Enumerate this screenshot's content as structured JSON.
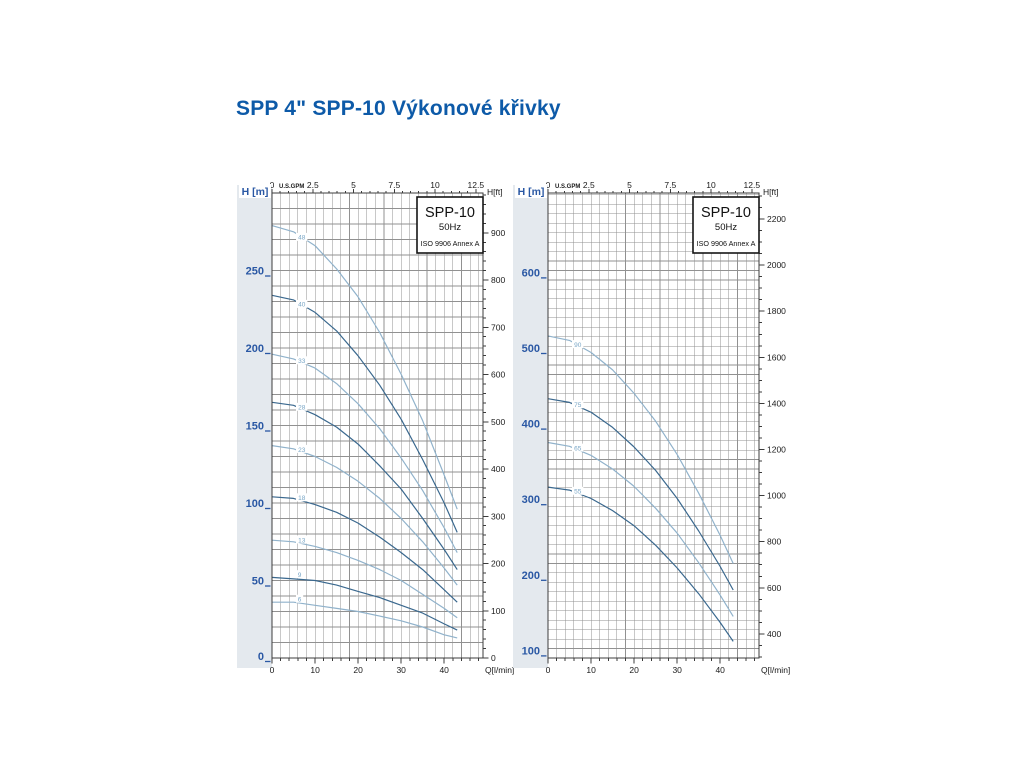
{
  "page": {
    "title": "SPP 4\" SPP-10 Výkonové křivky"
  },
  "colors": {
    "title_blue": "#0d5aa8",
    "axis_value_blue": "#2a58a4",
    "curve_dark": "#3a688e",
    "curve_light": "#90b2cb",
    "curve_label_blue": "#79a6c6",
    "grid_gray": "#919191",
    "plot_border": "#3c3c3c",
    "tick_text": "#1a1a1a",
    "panel_strip": "#e4e9ee"
  },
  "chart_data": [
    {
      "type": "line",
      "title": "SPP-10",
      "box": {
        "model": "SPP-10",
        "frequency": "50Hz",
        "standard": "ISO 9906 Annex A"
      },
      "axes": {
        "left_label": "H [m]",
        "right_label": "H[ft]",
        "bottom_label": "Q[l/min]",
        "top_label": "U.S.GPM",
        "y_m_range": [
          0,
          300
        ],
        "y_m_ticks": [
          0,
          50,
          100,
          150,
          200,
          250
        ],
        "y_ft_labels": [
          0,
          100,
          200,
          300,
          400,
          500,
          600,
          700,
          800,
          900
        ],
        "y_ft_minor_range": [
          0,
          980
        ],
        "y_ft_minor_step": 20,
        "x_lmin_max": 49,
        "x_lmin_ticks": [
          0,
          10,
          20,
          30,
          40
        ],
        "x_lmin_minor_step": 2,
        "x_gpm_ticks": [
          0,
          2.5,
          5,
          7.5,
          10,
          12.5
        ],
        "x_gpm_minor_step": 0.5,
        "grid_m_step": 10
      },
      "series": [
        {
          "stages": "48",
          "shade": "light",
          "points": [
            [
              0,
              279
            ],
            [
              5,
              275
            ],
            [
              10,
              266
            ],
            [
              15,
              251
            ],
            [
              20,
              233
            ],
            [
              25,
              210
            ],
            [
              30,
              183
            ],
            [
              35,
              153
            ],
            [
              40,
              118
            ],
            [
              43,
              96
            ]
          ]
        },
        {
          "stages": "40",
          "shade": "dark",
          "points": [
            [
              0,
              234
            ],
            [
              5,
              231
            ],
            [
              10,
              223
            ],
            [
              15,
              211
            ],
            [
              20,
              195
            ],
            [
              25,
              176
            ],
            [
              30,
              154
            ],
            [
              35,
              128
            ],
            [
              40,
              100
            ],
            [
              43,
              81
            ]
          ]
        },
        {
          "stages": "33",
          "shade": "light",
          "points": [
            [
              0,
              196
            ],
            [
              5,
              193
            ],
            [
              10,
              187
            ],
            [
              15,
              177
            ],
            [
              20,
              164
            ],
            [
              25,
              148
            ],
            [
              30,
              129
            ],
            [
              35,
              108
            ],
            [
              40,
              84
            ],
            [
              43,
              68
            ]
          ]
        },
        {
          "stages": "28",
          "shade": "dark",
          "points": [
            [
              0,
              165
            ],
            [
              5,
              163
            ],
            [
              10,
              157
            ],
            [
              15,
              149
            ],
            [
              20,
              138
            ],
            [
              25,
              124
            ],
            [
              30,
              109
            ],
            [
              35,
              90
            ],
            [
              40,
              70
            ],
            [
              43,
              57
            ]
          ]
        },
        {
          "stages": "23",
          "shade": "light",
          "points": [
            [
              0,
              137
            ],
            [
              5,
              135
            ],
            [
              10,
              130
            ],
            [
              15,
              123
            ],
            [
              20,
              114
            ],
            [
              25,
              103
            ],
            [
              30,
              90
            ],
            [
              35,
              75
            ],
            [
              40,
              58
            ],
            [
              43,
              47
            ]
          ]
        },
        {
          "stages": "18",
          "shade": "dark",
          "points": [
            [
              0,
              104
            ],
            [
              5,
              103
            ],
            [
              10,
              99
            ],
            [
              15,
              94
            ],
            [
              20,
              87
            ],
            [
              25,
              78
            ],
            [
              30,
              68
            ],
            [
              35,
              57
            ],
            [
              40,
              44
            ],
            [
              43,
              36
            ]
          ]
        },
        {
          "stages": "13",
          "shade": "light",
          "points": [
            [
              0,
              76
            ],
            [
              5,
              75
            ],
            [
              10,
              72
            ],
            [
              15,
              68
            ],
            [
              20,
              63
            ],
            [
              25,
              57
            ],
            [
              30,
              50
            ],
            [
              35,
              41
            ],
            [
              40,
              32
            ],
            [
              43,
              26
            ]
          ]
        },
        {
          "stages": "9",
          "shade": "dark",
          "points": [
            [
              0,
              52
            ],
            [
              5,
              51
            ],
            [
              10,
              50
            ],
            [
              15,
              47
            ],
            [
              20,
              43
            ],
            [
              25,
              39
            ],
            [
              30,
              34
            ],
            [
              35,
              29
            ],
            [
              40,
              22
            ],
            [
              43,
              18
            ]
          ]
        },
        {
          "stages": "6",
          "shade": "light",
          "points": [
            [
              0,
              36
            ],
            [
              5,
              36
            ],
            [
              10,
              34
            ],
            [
              15,
              32
            ],
            [
              20,
              30
            ],
            [
              25,
              27
            ],
            [
              30,
              24
            ],
            [
              35,
              20
            ],
            [
              40,
              15
            ],
            [
              43,
              13
            ]
          ]
        }
      ]
    },
    {
      "type": "line",
      "title": "SPP-10",
      "box": {
        "model": "SPP-10",
        "frequency": "50Hz",
        "standard": "ISO 9906 Annex A"
      },
      "axes": {
        "left_label": "H [m]",
        "right_label": "H[ft]",
        "bottom_label": "Q[l/min]",
        "top_label": "U.S.GPM",
        "y_m_range": [
          90,
          705
        ],
        "y_m_ticks": [
          100,
          200,
          300,
          400,
          500,
          600
        ],
        "y_ft_labels": [
          400,
          600,
          800,
          1000,
          1200,
          1400,
          1600,
          1800,
          2000,
          2200
        ],
        "y_ft_minor_range": [
          300,
          2300
        ],
        "y_ft_minor_step": 50,
        "x_lmin_max": 49,
        "x_lmin_ticks": [
          0,
          10,
          20,
          30,
          40
        ],
        "x_lmin_minor_step": 2,
        "x_gpm_ticks": [
          0,
          2.5,
          5,
          7.5,
          10,
          12.5
        ],
        "x_gpm_minor_step": 0.5,
        "grid_m_step": 12.5
      },
      "series": [
        {
          "stages": "90",
          "shade": "light",
          "points": [
            [
              0,
              516
            ],
            [
              5,
              510
            ],
            [
              10,
              494
            ],
            [
              15,
              471
            ],
            [
              20,
              440
            ],
            [
              25,
              403
            ],
            [
              30,
              359
            ],
            [
              35,
              308
            ],
            [
              40,
              252
            ],
            [
              43,
              215
            ]
          ]
        },
        {
          "stages": "75",
          "shade": "dark",
          "points": [
            [
              0,
              433
            ],
            [
              5,
              428
            ],
            [
              10,
              415
            ],
            [
              15,
              395
            ],
            [
              20,
              369
            ],
            [
              25,
              338
            ],
            [
              30,
              301
            ],
            [
              35,
              258
            ],
            [
              40,
              211
            ],
            [
              43,
              180
            ]
          ]
        },
        {
          "stages": "65",
          "shade": "light",
          "points": [
            [
              0,
              375
            ],
            [
              5,
              370
            ],
            [
              10,
              358
            ],
            [
              15,
              340
            ],
            [
              20,
              317
            ],
            [
              25,
              288
            ],
            [
              30,
              255
            ],
            [
              35,
              216
            ],
            [
              40,
              173
            ],
            [
              43,
              145
            ]
          ]
        },
        {
          "stages": "55",
          "shade": "dark",
          "points": [
            [
              0,
              316
            ],
            [
              5,
              312
            ],
            [
              10,
              301
            ],
            [
              15,
              285
            ],
            [
              20,
              265
            ],
            [
              25,
              239
            ],
            [
              30,
              209
            ],
            [
              35,
              175
            ],
            [
              40,
              137
            ],
            [
              43,
              112
            ]
          ]
        }
      ]
    }
  ]
}
